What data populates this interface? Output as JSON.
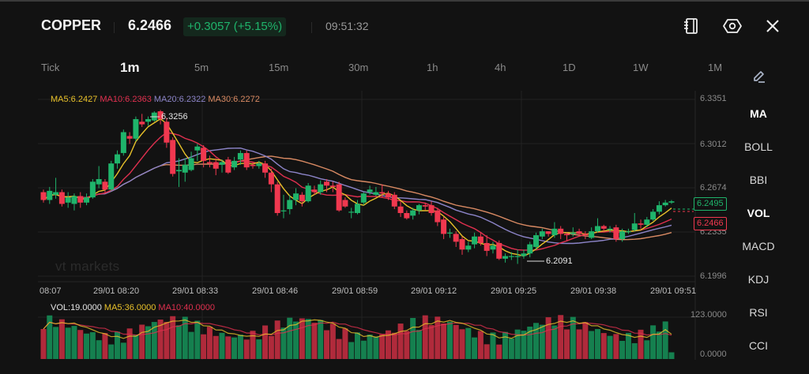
{
  "header": {
    "symbol": "COPPER",
    "price": "6.2466",
    "change": "+0.3057 (+5.15%)",
    "time": "09:51:32",
    "icons": [
      "notebook-icon",
      "settings-hex-icon",
      "close-icon"
    ]
  },
  "timeframes": [
    {
      "label": "Tick",
      "active": false
    },
    {
      "label": "1m",
      "active": true
    },
    {
      "label": "5m",
      "active": false
    },
    {
      "label": "15m",
      "active": false
    },
    {
      "label": "30m",
      "active": false
    },
    {
      "label": "1h",
      "active": false
    },
    {
      "label": "4h",
      "active": false
    },
    {
      "label": "1D",
      "active": false
    },
    {
      "label": "1W",
      "active": false
    },
    {
      "label": "1M",
      "active": false
    }
  ],
  "indicators": [
    {
      "label": "MA",
      "active": true
    },
    {
      "label": "BOLL",
      "active": false
    },
    {
      "label": "BBI",
      "active": false
    },
    {
      "label": "VOL",
      "active": true
    },
    {
      "label": "MACD",
      "active": false
    },
    {
      "label": "KDJ",
      "active": false
    },
    {
      "label": "RSI",
      "active": false
    },
    {
      "label": "CCI",
      "active": false
    }
  ],
  "ma_legend": {
    "ma5": "MA5:6.2427",
    "ma10": "MA10:6.2363",
    "ma20": "MA20:6.2322",
    "ma30": "MA30:6.2272"
  },
  "vol_legend": {
    "vol": "VOL:19.0000",
    "ma5": "MA5:36.0000",
    "ma10": "MA10:40.0000"
  },
  "price_axis": [
    "6.3351",
    "6.3012",
    "6.2674",
    "6.2335",
    "6.1996"
  ],
  "vol_axis": [
    "123.0000",
    "0.0000"
  ],
  "time_axis": [
    "08:07",
    "29/01 08:20",
    "29/01 08:33",
    "29/01 08:46",
    "29/01 08:59",
    "29/01 09:12",
    "29/01 09:25",
    "29/01 09:38",
    "29/01 09:51"
  ],
  "annotations": {
    "high": "6.3256",
    "low": "6.2091",
    "bid_tag": "6.2495",
    "last_tag": "6.2466"
  },
  "watermark": "vt markets",
  "colors": {
    "up": "#1fb46b",
    "down": "#f0384f",
    "ma5": "#e8c12a",
    "ma10": "#e0304f",
    "ma20": "#8c84c8",
    "ma30": "#d98a63",
    "background": "#121212"
  },
  "chart_data": {
    "type": "candlestick",
    "title": "COPPER 1m",
    "ylim": [
      6.1996,
      6.3351
    ],
    "x_ticks": [
      "08:07",
      "29/01 08:20",
      "29/01 08:33",
      "29/01 08:46",
      "29/01 08:59",
      "29/01 09:12",
      "29/01 09:25",
      "29/01 09:38",
      "29/01 09:51"
    ],
    "y_ticks": [
      6.3351,
      6.3012,
      6.2674,
      6.2335,
      6.1996
    ],
    "high_label": 6.3256,
    "low_label": 6.2091,
    "last_price": 6.2466,
    "candles": [
      [
        6.264,
        6.258,
        6.266,
        6.256
      ],
      [
        6.258,
        6.265,
        6.268,
        6.255
      ],
      [
        6.262,
        6.264,
        6.275,
        6.259
      ],
      [
        6.264,
        6.255,
        6.266,
        6.253
      ],
      [
        6.256,
        6.26,
        6.264,
        6.252
      ],
      [
        6.255,
        6.261,
        6.263,
        6.25
      ],
      [
        6.261,
        6.256,
        6.264,
        6.252
      ],
      [
        6.256,
        6.26,
        6.263,
        6.254
      ],
      [
        6.26,
        6.272,
        6.274,
        6.259
      ],
      [
        6.27,
        6.274,
        6.284,
        6.267
      ],
      [
        6.272,
        6.266,
        6.274,
        6.263
      ],
      [
        6.266,
        6.286,
        6.288,
        6.265
      ],
      [
        6.286,
        6.293,
        6.296,
        6.282
      ],
      [
        6.294,
        6.31,
        6.312,
        6.292
      ],
      [
        6.307,
        6.305,
        6.31,
        6.301
      ],
      [
        6.305,
        6.32,
        6.322,
        6.303
      ],
      [
        6.318,
        6.316,
        6.324,
        6.314
      ],
      [
        6.318,
        6.32,
        6.322,
        6.315
      ],
      [
        6.319,
        6.325,
        6.326,
        6.318
      ],
      [
        6.326,
        6.32,
        6.327,
        6.316
      ],
      [
        6.318,
        6.302,
        6.321,
        6.298
      ],
      [
        6.304,
        6.278,
        6.306,
        6.276
      ],
      [
        6.28,
        6.281,
        6.29,
        6.268
      ],
      [
        6.279,
        6.285,
        6.29,
        6.272
      ],
      [
        6.281,
        6.29,
        6.295,
        6.28
      ],
      [
        6.296,
        6.299,
        6.301,
        6.288
      ],
      [
        6.298,
        6.288,
        6.3,
        6.283
      ],
      [
        6.287,
        6.286,
        6.292,
        6.283
      ],
      [
        6.287,
        6.282,
        6.29,
        6.277
      ],
      [
        6.285,
        6.287,
        6.289,
        6.279
      ],
      [
        6.289,
        6.279,
        6.291,
        6.278
      ],
      [
        6.283,
        6.288,
        6.291,
        6.281
      ],
      [
        6.289,
        6.294,
        6.296,
        6.285
      ],
      [
        6.294,
        6.283,
        6.296,
        6.281
      ],
      [
        6.285,
        6.284,
        6.287,
        6.282
      ],
      [
        6.284,
        6.286,
        6.288,
        6.282
      ],
      [
        6.286,
        6.279,
        6.288,
        6.275
      ],
      [
        6.279,
        6.27,
        6.282,
        6.264
      ],
      [
        6.27,
        6.248,
        6.272,
        6.246
      ],
      [
        6.25,
        6.25,
        6.262,
        6.244
      ],
      [
        6.251,
        6.258,
        6.262,
        6.247
      ],
      [
        6.258,
        6.263,
        6.267,
        6.254
      ],
      [
        6.262,
        6.257,
        6.264,
        6.253
      ],
      [
        6.257,
        6.269,
        6.271,
        6.256
      ],
      [
        6.266,
        6.264,
        6.269,
        6.262
      ],
      [
        6.264,
        6.27,
        6.273,
        6.262
      ],
      [
        6.272,
        6.269,
        6.274,
        6.264
      ],
      [
        6.269,
        6.268,
        6.272,
        6.264
      ],
      [
        6.27,
        6.25,
        6.272,
        6.249
      ],
      [
        6.258,
        6.253,
        6.26,
        6.252
      ],
      [
        6.249,
        6.249,
        6.252,
        6.244
      ],
      [
        6.248,
        6.255,
        6.258,
        6.247
      ],
      [
        6.256,
        6.263,
        6.264,
        6.254
      ],
      [
        6.264,
        6.266,
        6.269,
        6.262
      ],
      [
        6.262,
        6.264,
        6.268,
        6.261
      ],
      [
        6.264,
        6.263,
        6.27,
        6.26
      ],
      [
        6.263,
        6.26,
        6.265,
        6.258
      ],
      [
        6.262,
        6.253,
        6.264,
        6.251
      ],
      [
        6.253,
        6.248,
        6.257,
        6.245
      ],
      [
        6.248,
        6.244,
        6.25,
        6.243
      ],
      [
        6.246,
        6.25,
        6.252,
        6.243
      ],
      [
        6.25,
        6.254,
        6.255,
        6.247
      ],
      [
        6.254,
        6.253,
        6.256,
        6.25
      ],
      [
        6.254,
        6.248,
        6.257,
        6.246
      ],
      [
        6.25,
        6.241,
        6.252,
        6.238
      ],
      [
        6.243,
        6.232,
        6.245,
        6.228
      ],
      [
        6.233,
        6.233,
        6.236,
        6.229
      ],
      [
        6.232,
        6.226,
        6.234,
        6.222
      ],
      [
        6.228,
        6.22,
        6.23,
        6.216
      ],
      [
        6.22,
        6.223,
        6.226,
        6.218
      ],
      [
        6.224,
        6.23,
        6.233,
        6.221
      ],
      [
        6.23,
        6.225,
        6.233,
        6.223
      ],
      [
        6.225,
        6.219,
        6.231,
        6.215
      ],
      [
        6.22,
        6.223,
        6.226,
        6.217
      ],
      [
        6.225,
        6.213,
        6.227,
        6.212
      ],
      [
        6.213,
        6.215,
        6.217,
        6.21
      ],
      [
        6.215,
        6.215,
        6.218,
        6.212
      ],
      [
        6.215,
        6.215,
        6.22,
        6.209
      ],
      [
        6.215,
        6.217,
        6.22,
        6.213
      ],
      [
        6.217,
        6.224,
        6.226,
        6.214
      ],
      [
        6.222,
        6.231,
        6.233,
        6.22
      ],
      [
        6.23,
        6.234,
        6.236,
        6.228
      ],
      [
        6.234,
        6.232,
        6.234,
        6.23
      ],
      [
        6.231,
        6.236,
        6.241,
        6.229
      ],
      [
        6.236,
        6.232,
        6.238,
        6.228
      ],
      [
        6.232,
        6.231,
        6.233,
        6.227
      ],
      [
        6.232,
        6.233,
        6.237,
        6.23
      ],
      [
        6.234,
        6.232,
        6.236,
        6.23
      ],
      [
        6.232,
        6.231,
        6.234,
        6.228
      ],
      [
        6.229,
        6.234,
        6.237,
        6.228
      ],
      [
        6.234,
        6.238,
        6.244,
        6.233
      ],
      [
        6.238,
        6.236,
        6.239,
        6.234
      ],
      [
        6.236,
        6.236,
        6.238,
        6.233
      ],
      [
        6.237,
        6.228,
        6.239,
        6.226
      ],
      [
        6.228,
        6.234,
        6.236,
        6.226
      ],
      [
        6.234,
        6.234,
        6.236,
        6.232
      ],
      [
        6.235,
        6.24,
        6.248,
        6.234
      ],
      [
        6.24,
        6.239,
        6.243,
        6.236
      ],
      [
        6.239,
        6.243,
        6.245,
        6.237
      ],
      [
        6.243,
        6.249,
        6.251,
        6.242
      ],
      [
        6.249,
        6.254,
        6.257,
        6.247
      ],
      [
        6.254,
        6.256,
        6.258,
        6.253
      ],
      [
        6.256,
        6.257,
        6.258,
        6.255
      ]
    ],
    "volume_axis": [
      0,
      123
    ],
    "volume_last": 19
  }
}
